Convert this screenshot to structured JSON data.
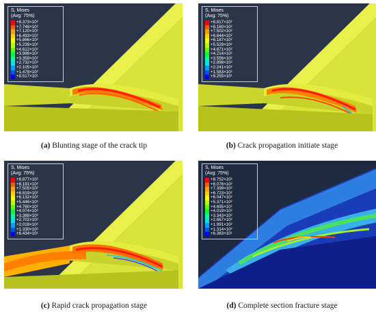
{
  "panels": [
    {
      "id": "a",
      "legend_title": "S, Mises",
      "legend_sub": "(Avg: 75%)",
      "values": [
        "+8.373×10²",
        "+7.746×10²",
        "+7.120×10²",
        "+6.493×10²",
        "+5.866×10²",
        "+5.239×10²",
        "+4.612×10²",
        "+3.986×10²",
        "+3.359×10²",
        "+2.732×10²",
        "+2.105×10²",
        "+1.478×10²",
        "+8.517×10¹"
      ],
      "caption_label": "(a)",
      "caption_text": "Blunting stage of the crack tip"
    },
    {
      "id": "b",
      "legend_title": "S, Mises",
      "legend_sub": "(Avg: 75%)",
      "values": [
        "+8.817×10²",
        "+8.160×10²",
        "+7.502×10²",
        "+6.844×10²",
        "+6.187×10²",
        "+5.529×10²",
        "+4.871×10²",
        "+4.214×10²",
        "+3.556×10²",
        "+2.898×10²",
        "+2.241×10²",
        "+1.583×10²",
        "+9.255×10¹"
      ],
      "caption_label": "(b)",
      "caption_text": "Crack propagation initiate stage"
    },
    {
      "id": "c",
      "legend_title": "S, Mises",
      "legend_sub": "(Avg: 75%)",
      "values": [
        "+8.877×10²",
        "+8.191×10²",
        "+7.505×10²",
        "+6.819×10²",
        "+6.132×10²",
        "+5.446×10²",
        "+4.760×10²",
        "+4.074×10²",
        "+3.388×10²",
        "+2.702×10²",
        "+2.016×10²",
        "+1.330×10²",
        "+6.434×10¹"
      ],
      "caption_label": "(c)",
      "caption_text": "Rapid crack propagation stage"
    },
    {
      "id": "d",
      "legend_title": "S, Mises",
      "legend_sub": "(Avg: 75%)",
      "values": [
        "+8.752×10²",
        "+8.076×10²",
        "+7.399×10²",
        "+6.723×10²",
        "+6.047×10²",
        "+5.371×10²",
        "+4.695×10²",
        "+4.019×10²",
        "+3.343×10²",
        "+2.667×10²",
        "+1.991×10²",
        "+1.314×10²",
        "+6.383×10¹"
      ],
      "caption_label": "(d)",
      "caption_text": "Complete section fracture stage"
    }
  ],
  "colors": {
    "scale": [
      "#ff0000",
      "#ff5a00",
      "#ffa000",
      "#ffd200",
      "#f0ff00",
      "#b4ff00",
      "#5aff00",
      "#00ff3c",
      "#00ffa0",
      "#00e6e6",
      "#00a0ff",
      "#0050ff",
      "#0000ff"
    ],
    "background": "#2a3448",
    "model_yellow": "#e6ee3a",
    "model_shade": "#b9c51c"
  }
}
